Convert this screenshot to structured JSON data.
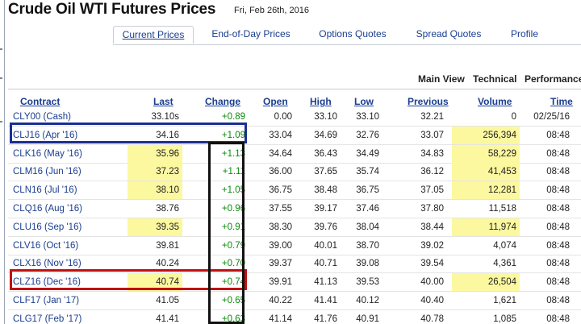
{
  "page": {
    "title": "Crude Oil WTI Futures Prices",
    "date": "Fri, Feb 26th, 2016"
  },
  "tabs": [
    {
      "label": "Current Prices",
      "active": true
    },
    {
      "label": "End-of-Day Prices",
      "active": false
    },
    {
      "label": "Options Quotes",
      "active": false
    },
    {
      "label": "Spread Quotes",
      "active": false
    },
    {
      "label": "Profile",
      "active": false
    }
  ],
  "view_switch": [
    "Main View",
    "Technical",
    "Performance"
  ],
  "columns": {
    "contract": "Contract",
    "last": "Last",
    "change": "Change",
    "open": "Open",
    "high": "High",
    "low": "Low",
    "previous": "Previous",
    "volume": "Volume",
    "time": "Time"
  },
  "rows": [
    {
      "contract": "CLY00 (Cash)",
      "last": "33.10s",
      "change": "+0.89",
      "open": "0.00",
      "high": "33.10",
      "low": "33.10",
      "previous": "32.21",
      "volume": "0",
      "time": "02/25/16",
      "last_highlight": false,
      "volume_highlight": false
    },
    {
      "contract": "CLJ16 (Apr '16)",
      "last": "34.16",
      "change": "+1.09",
      "open": "33.04",
      "high": "34.69",
      "low": "32.76",
      "previous": "33.07",
      "volume": "256,394",
      "time": "08:48",
      "last_highlight": false,
      "volume_highlight": true
    },
    {
      "contract": "CLK16 (May '16)",
      "last": "35.96",
      "change": "+1.13",
      "open": "34.64",
      "high": "36.43",
      "low": "34.49",
      "previous": "34.83",
      "volume": "58,229",
      "time": "08:48",
      "last_highlight": true,
      "volume_highlight": true
    },
    {
      "contract": "CLM16 (Jun '16)",
      "last": "37.23",
      "change": "+1.11",
      "open": "36.00",
      "high": "37.65",
      "low": "35.74",
      "previous": "36.12",
      "volume": "41,453",
      "time": "08:48",
      "last_highlight": true,
      "volume_highlight": true
    },
    {
      "contract": "CLN16 (Jul '16)",
      "last": "38.10",
      "change": "+1.05",
      "open": "36.75",
      "high": "38.48",
      "low": "36.75",
      "previous": "37.05",
      "volume": "12,281",
      "time": "08:48",
      "last_highlight": true,
      "volume_highlight": true
    },
    {
      "contract": "CLQ16 (Aug '16)",
      "last": "38.76",
      "change": "+0.96",
      "open": "37.55",
      "high": "39.17",
      "low": "37.46",
      "previous": "37.80",
      "volume": "11,518",
      "time": "08:48",
      "last_highlight": false,
      "volume_highlight": false
    },
    {
      "contract": "CLU16 (Sep '16)",
      "last": "39.35",
      "change": "+0.91",
      "open": "38.30",
      "high": "39.76",
      "low": "38.04",
      "previous": "38.44",
      "volume": "11,974",
      "time": "08:48",
      "last_highlight": true,
      "volume_highlight": true
    },
    {
      "contract": "CLV16 (Oct '16)",
      "last": "39.81",
      "change": "+0.79",
      "open": "39.00",
      "high": "40.01",
      "low": "38.70",
      "previous": "39.02",
      "volume": "4,074",
      "time": "08:48",
      "last_highlight": false,
      "volume_highlight": false
    },
    {
      "contract": "CLX16 (Nov '16)",
      "last": "40.24",
      "change": "+0.70",
      "open": "39.37",
      "high": "40.71",
      "low": "39.08",
      "previous": "39.54",
      "volume": "4,361",
      "time": "08:48",
      "last_highlight": false,
      "volume_highlight": false
    },
    {
      "contract": "CLZ16 (Dec '16)",
      "last": "40.74",
      "change": "+0.74",
      "open": "39.91",
      "high": "41.13",
      "low": "39.53",
      "previous": "40.00",
      "volume": "26,504",
      "time": "08:48",
      "last_highlight": true,
      "volume_highlight": true
    },
    {
      "contract": "CLF17 (Jan '17)",
      "last": "41.05",
      "change": "+0.65",
      "open": "40.22",
      "high": "41.41",
      "low": "40.12",
      "previous": "40.40",
      "volume": "1,621",
      "time": "08:48",
      "last_highlight": false,
      "volume_highlight": false
    },
    {
      "contract": "CLG17 (Feb '17)",
      "last": "41.41",
      "change": "+0.63",
      "open": "41.14",
      "high": "41.76",
      "low": "40.91",
      "previous": "40.78",
      "volume": "1,085",
      "time": "08:48",
      "last_highlight": false,
      "volume_highlight": false
    }
  ],
  "colors": {
    "link": "#1a3d8f",
    "positive": "#0a8a0a",
    "highlight": "#fbf8a0",
    "annotation_blue": "#1b2e91",
    "annotation_red": "#c01010",
    "annotation_black": "#111111"
  }
}
